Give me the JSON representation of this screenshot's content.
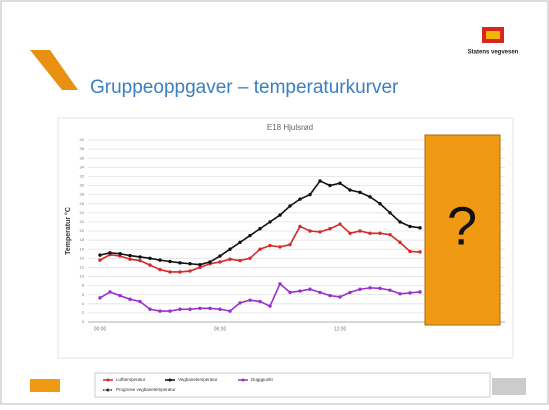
{
  "slide": {
    "title": "Gruppeoppgaver – temperaturkurver",
    "logo_text": "Statens vegvesen",
    "overlay": "?"
  },
  "chart_data": {
    "type": "line",
    "title": "E18 Hjulsrød",
    "y_label": "Temperatur °C",
    "categories": [
      "00:00",
      null,
      null,
      null,
      null,
      null,
      null,
      null,
      null,
      null,
      null,
      null,
      "06:00",
      null,
      null,
      null,
      null,
      null,
      null,
      null,
      null,
      null,
      null,
      null,
      "12:00",
      null,
      null,
      null,
      null,
      null,
      null,
      null,
      null
    ],
    "series": [
      {
        "name": "Lufttemperatur",
        "color": "#d42a2a",
        "values": [
          13.6,
          14.8,
          14.5,
          13.8,
          13.5,
          12.5,
          11.5,
          11,
          11,
          11.2,
          12,
          12.8,
          13.2,
          13.8,
          13.5,
          14,
          16,
          16.8,
          16.5,
          17,
          21,
          20,
          19.8,
          20.5,
          21.5,
          19.5,
          20,
          19.5,
          19.5,
          19.2,
          17.5,
          15.5,
          15.4
        ]
      },
      {
        "name": "Vegbanetemperatur",
        "color": "#111111",
        "values": [
          14.7,
          15.2,
          15,
          14.6,
          14.3,
          14,
          13.6,
          13.3,
          13,
          12.8,
          12.6,
          13.2,
          14.5,
          16,
          17.5,
          19,
          20.5,
          22,
          23.5,
          25.5,
          27,
          28,
          31,
          30,
          30.5,
          29,
          28.5,
          27.5,
          26,
          24,
          22,
          21,
          20.7
        ]
      },
      {
        "name": "Duggpunkt",
        "color": "#9b30c8",
        "values": [
          5.3,
          6.6,
          5.8,
          5,
          4.5,
          2.8,
          2.4,
          2.4,
          2.8,
          2.8,
          3,
          3,
          2.8,
          2.4,
          4.2,
          4.8,
          4.5,
          3.5,
          8.4,
          6.5,
          6.8,
          7.2,
          6.5,
          5.8,
          5.5,
          6.5,
          7.2,
          7.5,
          7.4,
          7,
          6.2,
          6.4,
          6.6
        ]
      },
      {
        "name": "Prognose vegbanetemperatur",
        "color": "#333333",
        "values": [
          null,
          null,
          null,
          null,
          null,
          null,
          null,
          null,
          null,
          null,
          null,
          null,
          null,
          null,
          null,
          null,
          null,
          null,
          null,
          null,
          null,
          null,
          null,
          null,
          null,
          null,
          null,
          null,
          null,
          null,
          null,
          null,
          null
        ]
      }
    ],
    "ylim": [
      0,
      40
    ],
    "yticks": [
      0,
      2,
      4,
      6,
      8,
      10,
      12,
      14,
      16,
      18,
      20,
      22,
      24,
      26,
      28,
      30,
      32,
      34,
      36,
      38,
      40
    ],
    "grid": true
  }
}
